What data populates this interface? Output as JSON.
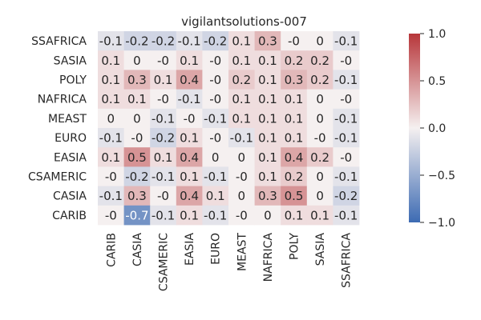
{
  "chart_data": {
    "type": "heatmap",
    "title": "vigilantsolutions-007",
    "row_labels": [
      "SSAFRICA",
      "SASIA",
      "POLY",
      "NAFRICA",
      "MEAST",
      "EURO",
      "EASIA",
      "CSAMERIC",
      "CASIA",
      "CARIB"
    ],
    "col_labels": [
      "CARIB",
      "CASIA",
      "CSAMERIC",
      "EASIA",
      "EURO",
      "MEAST",
      "NAFRICA",
      "POLY",
      "SASIA",
      "SSAFRICA"
    ],
    "values": [
      [
        -0.1,
        -0.2,
        -0.2,
        -0.1,
        -0.2,
        0.1,
        0.3,
        -0.0,
        0,
        -0.1
      ],
      [
        0.1,
        0,
        -0.0,
        0.1,
        -0.0,
        0.1,
        0.1,
        0.2,
        0.2,
        -0.0
      ],
      [
        0.1,
        0.3,
        0.1,
        0.4,
        -0.0,
        0.2,
        0.1,
        0.3,
        0.2,
        -0.1
      ],
      [
        0.1,
        0.1,
        -0.0,
        -0.1,
        -0.0,
        0.1,
        0.1,
        0.1,
        0,
        -0.0
      ],
      [
        0,
        0,
        -0.1,
        -0.0,
        -0.1,
        0.1,
        0.1,
        0.1,
        0,
        -0.1
      ],
      [
        -0.1,
        -0.0,
        -0.2,
        0.1,
        -0.0,
        -0.1,
        0.1,
        0.1,
        -0.0,
        -0.1
      ],
      [
        0.1,
        0.5,
        0.1,
        0.4,
        0,
        0,
        0.1,
        0.4,
        0.2,
        -0.0
      ],
      [
        -0.0,
        -0.2,
        -0.1,
        0.1,
        -0.1,
        -0.0,
        0.1,
        0.2,
        0,
        -0.1
      ],
      [
        -0.1,
        0.3,
        -0.0,
        0.4,
        0.1,
        0,
        0.3,
        0.5,
        0,
        -0.2
      ],
      [
        -0.0,
        -0.7,
        -0.1,
        0.1,
        -0.1,
        -0.0,
        0,
        0.1,
        0.1,
        -0.1
      ]
    ],
    "cell_text": [
      [
        "-0.1",
        "-0.2",
        "-0.2",
        "-0.1",
        "-0.2",
        "0.1",
        "0.3",
        "-0",
        "0",
        "-0.1"
      ],
      [
        "0.1",
        "0",
        "-0",
        "0.1",
        "-0",
        "0.1",
        "0.1",
        "0.2",
        "0.2",
        "-0"
      ],
      [
        "0.1",
        "0.3",
        "0.1",
        "0.4",
        "-0",
        "0.2",
        "0.1",
        "0.3",
        "0.2",
        "-0.1"
      ],
      [
        "0.1",
        "0.1",
        "-0",
        "-0.1",
        "-0",
        "0.1",
        "0.1",
        "0.1",
        "0",
        "-0"
      ],
      [
        "0",
        "0",
        "-0.1",
        "-0",
        "-0.1",
        "0.1",
        "0.1",
        "0.1",
        "0",
        "-0.1"
      ],
      [
        "-0.1",
        "-0",
        "-0.2",
        "0.1",
        "-0",
        "-0.1",
        "0.1",
        "0.1",
        "-0",
        "-0.1"
      ],
      [
        "0.1",
        "0.5",
        "0.1",
        "0.4",
        "0",
        "0",
        "0.1",
        "0.4",
        "0.2",
        "-0"
      ],
      [
        "-0",
        "-0.2",
        "-0.1",
        "0.1",
        "-0.1",
        "-0",
        "0.1",
        "0.2",
        "0",
        "-0.1"
      ],
      [
        "-0.1",
        "0.3",
        "-0",
        "0.4",
        "0.1",
        "0",
        "0.3",
        "0.5",
        "0",
        "-0.2"
      ],
      [
        "-0",
        "-0.7",
        "-0.1",
        "0.1",
        "-0.1",
        "-0",
        "0",
        "0.1",
        "0.1",
        "-0.1"
      ]
    ],
    "colorscale": {
      "name": "vlag",
      "min": -1.0,
      "max": 1.0,
      "low": "#3d6bb3",
      "mid": "#f5f0f0",
      "high": "#b7363a"
    },
    "colorbar_ticks": [
      {
        "value": 1.0,
        "label": "1.0"
      },
      {
        "value": 0.5,
        "label": "0.5"
      },
      {
        "value": 0.0,
        "label": "0.0"
      },
      {
        "value": -0.5,
        "label": "−0.5"
      },
      {
        "value": -1.0,
        "label": "−1.0"
      }
    ],
    "grid": false,
    "legend": "colorbar-right"
  }
}
